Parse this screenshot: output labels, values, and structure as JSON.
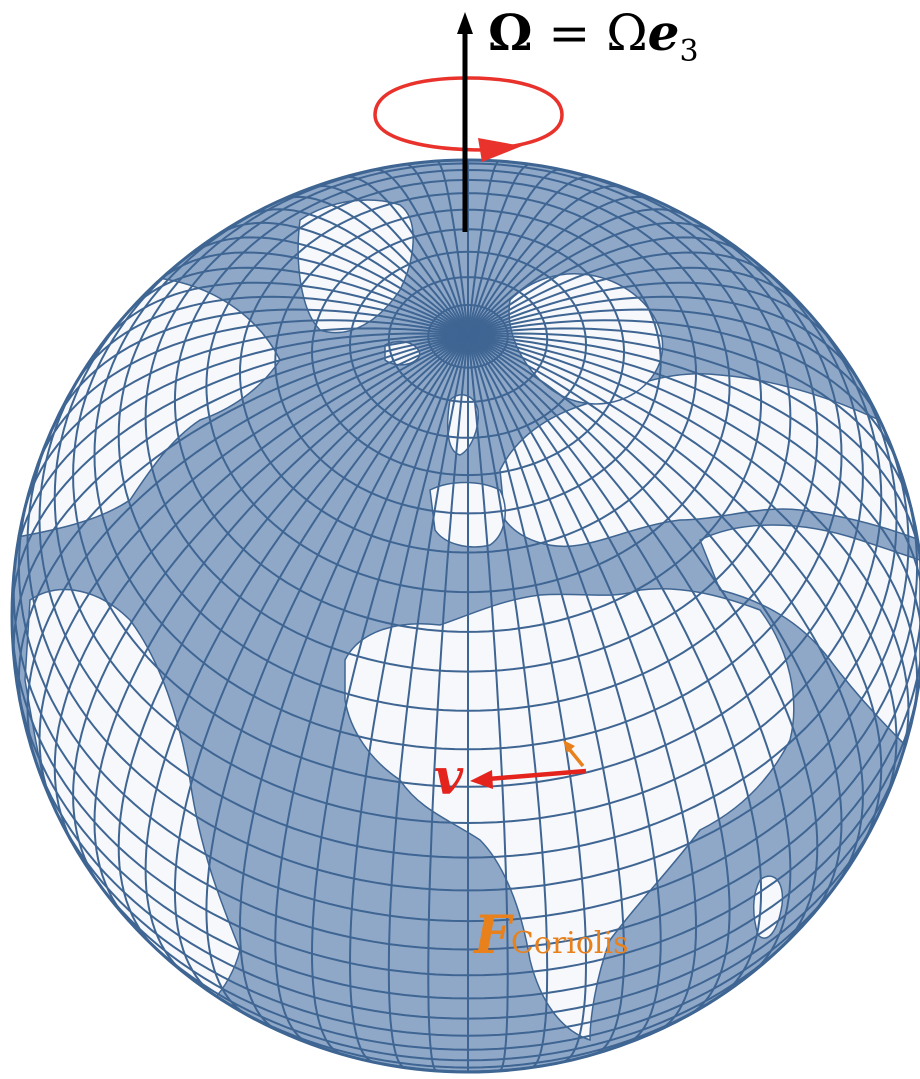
{
  "labels": {
    "rotation_vector": {
      "symbol_bold": "Ω",
      "equals": " = Ω",
      "basis_vector": "e",
      "basis_index": "3"
    },
    "coriolis_force": {
      "symbol": "F",
      "subscript": "Coriolis"
    },
    "velocity": {
      "symbol": "v"
    }
  },
  "colors": {
    "globe_line": "#3f6593",
    "land": "#f6f8fb",
    "ocean": "#8fa8c8",
    "rotation_arrow": "#e8322b",
    "axis_arrow": "#000000",
    "coriolis": "#e8811c",
    "velocity": "#e3231c"
  }
}
